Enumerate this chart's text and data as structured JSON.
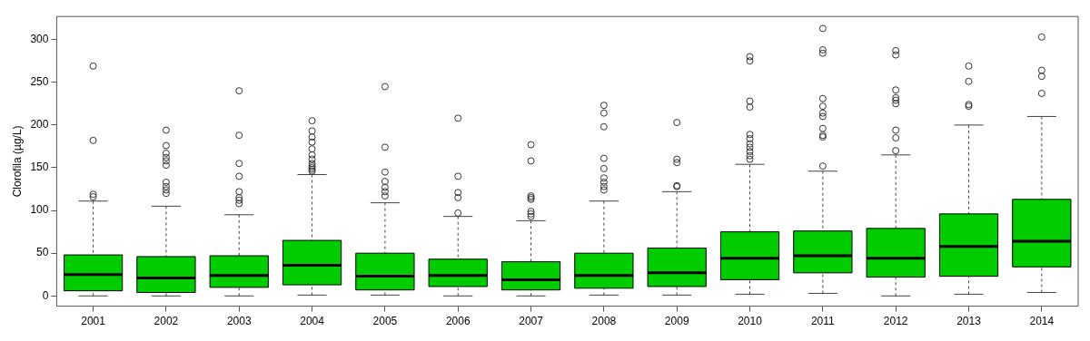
{
  "chart_data": {
    "type": "box",
    "ylabel": "Clorofila (µg/L)",
    "categories": [
      "2001",
      "2002",
      "2003",
      "2004",
      "2005",
      "2006",
      "2007",
      "2008",
      "2009",
      "2010",
      "2011",
      "2012",
      "2013",
      "2014"
    ],
    "color": "#00cc00",
    "ylim": [
      -12,
      327
    ],
    "yticks": [
      0,
      50,
      100,
      150,
      200,
      250,
      300
    ],
    "grid": false,
    "boxes": [
      {
        "low": 0,
        "q1": 6,
        "median": 25,
        "q3": 48,
        "high": 111,
        "outliers": [
          116,
          119,
          182,
          269
        ]
      },
      {
        "low": 0,
        "q1": 4,
        "median": 21,
        "q3": 46,
        "high": 105,
        "outliers": [
          120,
          124,
          128,
          133,
          153,
          158,
          162,
          167,
          176,
          194
        ]
      },
      {
        "low": 0,
        "q1": 10,
        "median": 24,
        "q3": 47,
        "high": 95,
        "outliers": [
          108,
          112,
          115,
          122,
          140,
          155,
          188,
          240
        ]
      },
      {
        "low": 1,
        "q1": 13,
        "median": 36,
        "q3": 65,
        "high": 142,
        "outliers": [
          146,
          148,
          150,
          152,
          155,
          160,
          165,
          172,
          180,
          186,
          193,
          205
        ]
      },
      {
        "low": 1,
        "q1": 7,
        "median": 23,
        "q3": 50,
        "high": 109,
        "outliers": [
          117,
          122,
          127,
          134,
          145,
          174,
          245
        ]
      },
      {
        "low": 0,
        "q1": 11,
        "median": 24,
        "q3": 43,
        "high": 93,
        "outliers": [
          97,
          115,
          121,
          140,
          208
        ]
      },
      {
        "low": 0,
        "q1": 7,
        "median": 19,
        "q3": 40,
        "high": 88,
        "outliers": [
          93,
          96,
          99,
          113,
          115,
          117,
          158,
          177
        ]
      },
      {
        "low": 1,
        "q1": 9,
        "median": 24,
        "q3": 50,
        "high": 111,
        "outliers": [
          124,
          128,
          133,
          138,
          149,
          161,
          198,
          214,
          223
        ]
      },
      {
        "low": 1,
        "q1": 11,
        "median": 27,
        "q3": 56,
        "high": 122,
        "outliers": [
          128,
          129,
          156,
          160,
          203
        ]
      },
      {
        "low": 2,
        "q1": 19,
        "median": 44,
        "q3": 75,
        "high": 154,
        "outliers": [
          160,
          164,
          169,
          174,
          178,
          184,
          189,
          221,
          228,
          275,
          280
        ]
      },
      {
        "low": 3,
        "q1": 27,
        "median": 47,
        "q3": 76,
        "high": 146,
        "outliers": [
          152,
          186,
          188,
          196,
          210,
          214,
          222,
          231,
          284,
          288,
          313
        ]
      },
      {
        "low": 0,
        "q1": 22,
        "median": 44,
        "q3": 79,
        "high": 165,
        "outliers": [
          170,
          185,
          194,
          225,
          229,
          232,
          241,
          282,
          287
        ]
      },
      {
        "low": 2,
        "q1": 23,
        "median": 58,
        "q3": 96,
        "high": 200,
        "outliers": [
          222,
          224,
          251,
          269
        ]
      },
      {
        "low": 4,
        "q1": 34,
        "median": 64,
        "q3": 113,
        "high": 210,
        "outliers": [
          237,
          257,
          264,
          303
        ]
      }
    ]
  }
}
